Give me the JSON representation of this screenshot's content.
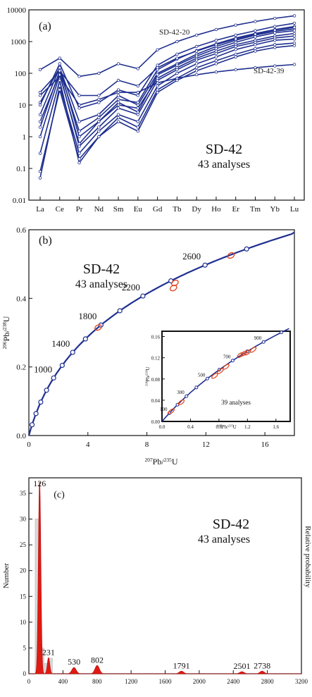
{
  "chart_data": [
    {
      "type": "line",
      "panel_label": "(a)",
      "sample": "SD-42",
      "subtitle": "43 analyses",
      "y_scale": "log",
      "ylim": [
        0.01,
        10000
      ],
      "ytick_labels": [
        "10000",
        "1000",
        "100",
        "10",
        "1",
        "0.1",
        "0.01"
      ],
      "categories": [
        "La",
        "Ce",
        "Pr",
        "Nd",
        "Sm",
        "Eu",
        "Gd",
        "Tb",
        "Dy",
        "Ho",
        "Er",
        "Tm",
        "Yb",
        "Lu"
      ],
      "series": [
        {
          "name": "SD-42-20",
          "values": [
            130,
            300,
            80,
            100,
            200,
            140,
            550,
            1000,
            1600,
            2400,
            3300,
            4300,
            5400,
            6500
          ]
        },
        {
          "name": "SD-42-39",
          "values": [
            20,
            80,
            10,
            15,
            25,
            25,
            50,
            70,
            90,
            110,
            130,
            150,
            170,
            190
          ]
        },
        {
          "values": [
            12,
            150,
            1,
            3,
            10,
            8,
            70,
            150,
            300,
            500,
            800,
            1100,
            1500,
            1800
          ]
        },
        {
          "values": [
            3,
            100,
            0.5,
            2,
            8,
            5,
            60,
            130,
            260,
            420,
            700,
            950,
            1300,
            1500
          ]
        },
        {
          "values": [
            0.05,
            40,
            0.3,
            1.5,
            5,
            3,
            40,
            100,
            200,
            330,
            560,
            800,
            1100,
            1200
          ]
        },
        {
          "values": [
            5,
            150,
            3,
            5,
            20,
            10,
            100,
            200,
            400,
            700,
            1100,
            1600,
            2100,
            2500
          ]
        },
        {
          "values": [
            1,
            90,
            0.6,
            3,
            12,
            6,
            90,
            180,
            350,
            600,
            950,
            1400,
            1900,
            2200
          ]
        },
        {
          "values": [
            0.3,
            60,
            0.15,
            1,
            4,
            2,
            30,
            70,
            150,
            250,
            400,
            600,
            800,
            900
          ]
        },
        {
          "values": [
            10,
            200,
            8,
            12,
            30,
            20,
            180,
            400,
            700,
            1100,
            1600,
            2200,
            3000,
            3800
          ]
        },
        {
          "values": [
            0.08,
            30,
            0.2,
            1,
            3,
            1.5,
            25,
            60,
            120,
            200,
            330,
            500,
            650,
            750
          ]
        },
        {
          "values": [
            2,
            120,
            1.5,
            4,
            15,
            12,
            130,
            280,
            520,
            850,
            1300,
            1800,
            2400,
            3000
          ]
        },
        {
          "values": [
            25,
            120,
            20,
            20,
            60,
            40,
            150,
            300,
            500,
            800,
            1200,
            1700,
            2300,
            2800
          ]
        }
      ],
      "annotations": [
        "SD-42-20",
        "SD-42-39"
      ]
    },
    {
      "type": "line",
      "panel_label": "(b)",
      "sample": "SD-42",
      "subtitle": "43 analyses",
      "xlabel": "207Pb/235U",
      "ylabel": "206Pb/238U",
      "xlim": [
        0,
        18
      ],
      "ylim": [
        0,
        0.6
      ],
      "xtick_labels": [
        "0",
        "4",
        "8",
        "12",
        "16"
      ],
      "ytick_labels": [
        "0.0",
        "0.2",
        "0.4",
        "0.6"
      ],
      "concordia_ages": [
        "1000",
        "1400",
        "1800",
        "2200",
        "2600"
      ],
      "ellipses": [
        [
          4.7,
          0.315
        ],
        [
          9.8,
          0.43
        ],
        [
          9.9,
          0.445
        ],
        [
          13.7,
          0.525
        ]
      ],
      "inset": {
        "subtitle": "39 analyses",
        "xlabel": "207Pb/235U",
        "ylabel": "206Pb/238U",
        "xlim": [
          0,
          1.8
        ],
        "ylim": [
          0,
          0.17
        ],
        "xtick_labels": [
          "0.0",
          "0.4",
          "0.8",
          "1.2",
          "1.6"
        ],
        "ytick_labels": [
          "0.00",
          "0.04",
          "0.08",
          "0.12",
          "0.16"
        ],
        "concordia_ages": [
          "100",
          "300",
          "500",
          "700",
          "900"
        ],
        "ellipses": [
          [
            0.13,
            0.019
          ],
          [
            0.27,
            0.036
          ],
          [
            0.74,
            0.086
          ],
          [
            0.82,
            0.095
          ],
          [
            0.9,
            0.103
          ],
          [
            1.1,
            0.125
          ],
          [
            1.15,
            0.128
          ],
          [
            1.2,
            0.13
          ],
          [
            1.28,
            0.135
          ]
        ]
      }
    },
    {
      "type": "bar",
      "panel_label": "(c)",
      "sample": "SD-42",
      "subtitle": "43 analyses",
      "ylabel": "Number",
      "ylabel_right": "Relative probability",
      "xlim": [
        0,
        3200
      ],
      "ylim": [
        0,
        38
      ],
      "xtick_labels": [
        "0",
        "400",
        "800",
        "1200",
        "1600",
        "2000",
        "2400",
        "2800",
        "3200"
      ],
      "ytick_labels": [
        "0",
        "5",
        "10",
        "15",
        "20",
        "25",
        "30",
        "35"
      ],
      "histogram_bin_width": 50,
      "histogram_gray": [
        {
          "x": 100,
          "count": 30
        },
        {
          "x": 150,
          "count": 5
        },
        {
          "x": 200,
          "count": 2
        },
        {
          "x": 250,
          "count": 3
        }
      ],
      "probability_peaks": [
        {
          "age": 126,
          "height": 37.5,
          "label": "126"
        },
        {
          "age": 231,
          "height": 3.1,
          "label": "231"
        },
        {
          "age": 530,
          "height": 1.2,
          "label": "530"
        },
        {
          "age": 802,
          "height": 1.6,
          "label": "802"
        },
        {
          "age": 1791,
          "height": 0.5,
          "label": "1791"
        },
        {
          "age": 2501,
          "height": 0.4,
          "label": "2501"
        },
        {
          "age": 2738,
          "height": 0.5,
          "label": "2738"
        }
      ]
    }
  ]
}
